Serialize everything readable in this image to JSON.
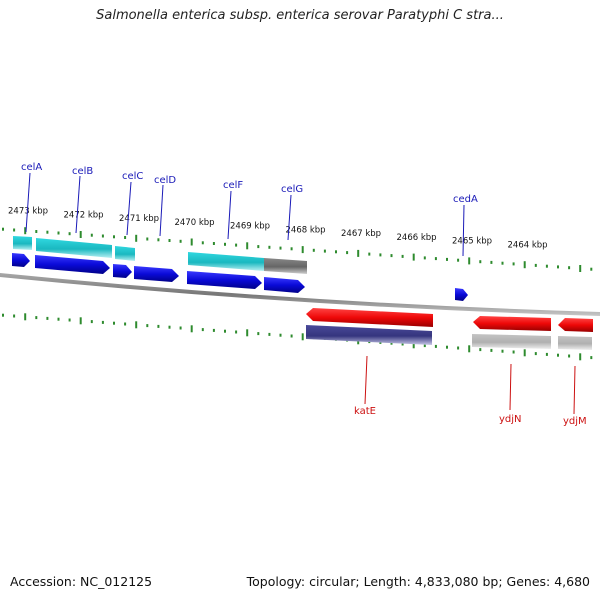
{
  "header": {
    "title": "Salmonella enterica subsp. enterica serovar Paratyphi C stra..."
  },
  "footer": {
    "accession": "Accession: NC_012125",
    "summary": "Topology: circular; Length: 4,833,080 bp; Genes: 4,680"
  },
  "colors": {
    "tick": "#2e8b2e",
    "backbone": "#8a8a8a",
    "gene_blue": "#1010dd",
    "gene_cyan": "#20c0c8",
    "gene_gray": "#707070",
    "gene_red": "#ee1111",
    "gene_navy": "#3a3a8a",
    "gene_lightgray": "#bbbbbb",
    "label_top": "#1a1ab8",
    "label_bottom": "#cc1111"
  },
  "scale": {
    "labels": [
      "2473 kbp",
      "2472 kbp",
      "2471 kbp",
      "2470 kbp",
      "2469 kbp",
      "2468 kbp",
      "2467 kbp",
      "2466 kbp",
      "2465 kbp",
      "2464 kbp"
    ]
  },
  "gene_labels_top": [
    "celA",
    "celB",
    "celC",
    "celD",
    "celF",
    "celG",
    "cedA"
  ],
  "gene_labels_bottom": [
    "katE",
    "ydjN",
    "ydjM"
  ]
}
